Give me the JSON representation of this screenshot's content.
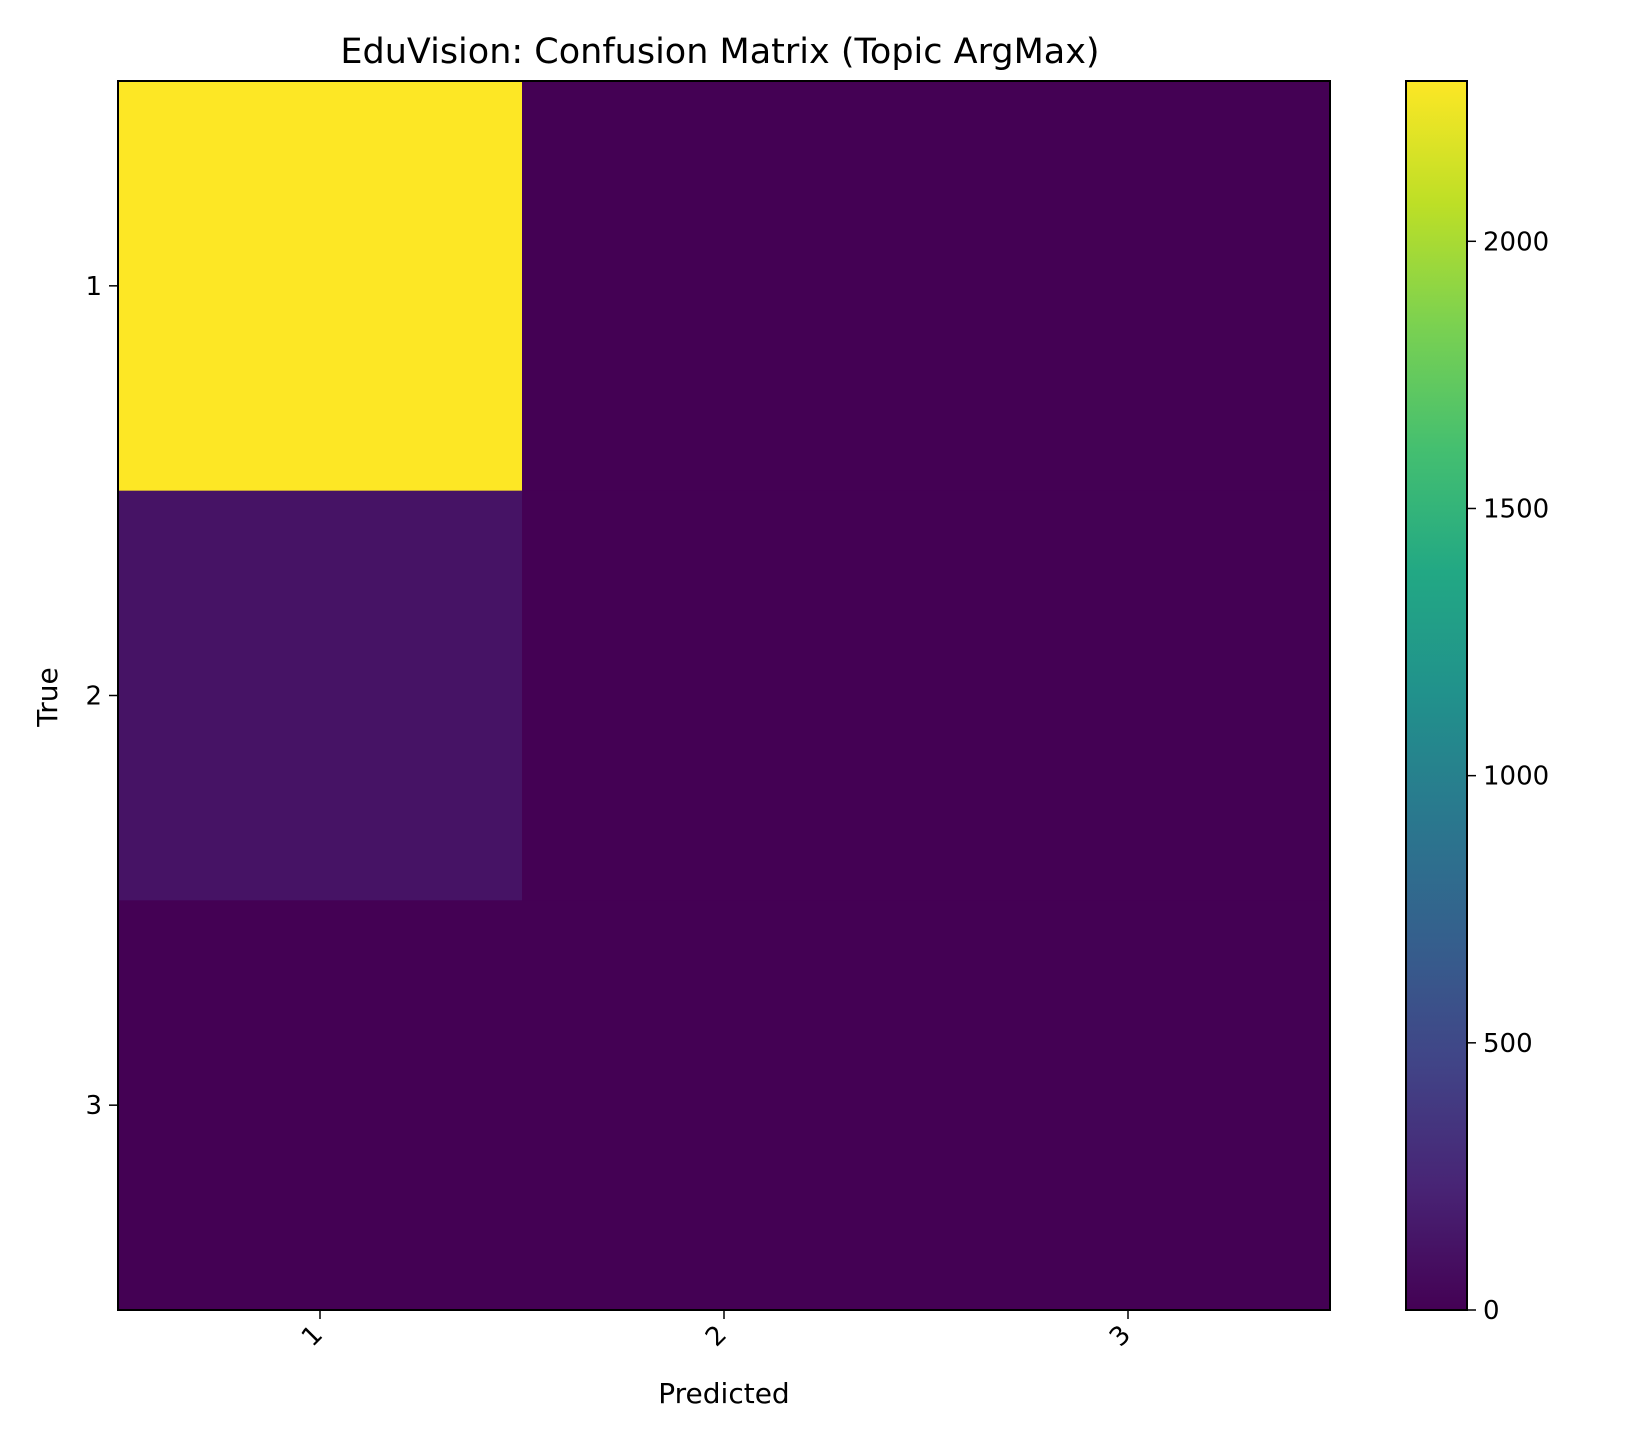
{
  "chart_data": {
    "type": "heatmap",
    "title": "EduVision: Confusion Matrix (Topic ArgMax)",
    "xlabel": "Predicted",
    "ylabel": "True",
    "x_categories": [
      "1",
      "2",
      "3"
    ],
    "y_categories": [
      "1",
      "2",
      "3"
    ],
    "values": [
      [
        2300,
        0,
        0
      ],
      [
        120,
        0,
        0
      ],
      [
        0,
        0,
        0
      ]
    ],
    "colormap": "viridis",
    "colorbar": {
      "range": [
        0,
        2300
      ],
      "ticks": [
        0,
        500,
        1000,
        1500,
        2000
      ]
    },
    "grid": false
  }
}
